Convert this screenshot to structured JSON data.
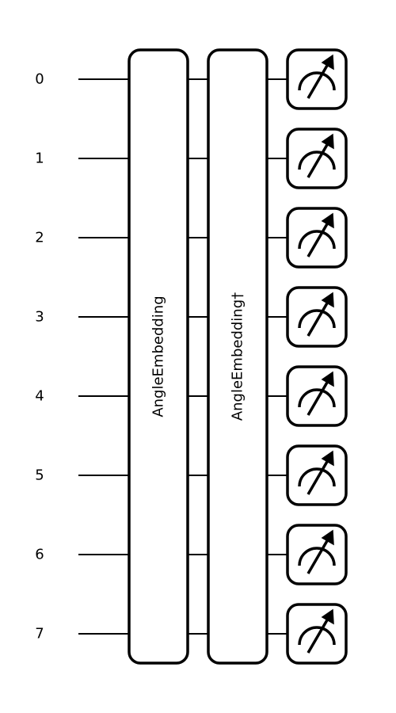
{
  "diagram": {
    "type": "quantum-circuit",
    "wires": [
      "0",
      "1",
      "2",
      "3",
      "4",
      "5",
      "6",
      "7"
    ],
    "gates": [
      {
        "label": "AngleEmbedding"
      },
      {
        "label": "AngleEmbedding†"
      }
    ],
    "measurement": {
      "icon": "meter-icon",
      "count": 8
    },
    "colors": {
      "stroke": "#000000",
      "background": "#ffffff"
    }
  }
}
